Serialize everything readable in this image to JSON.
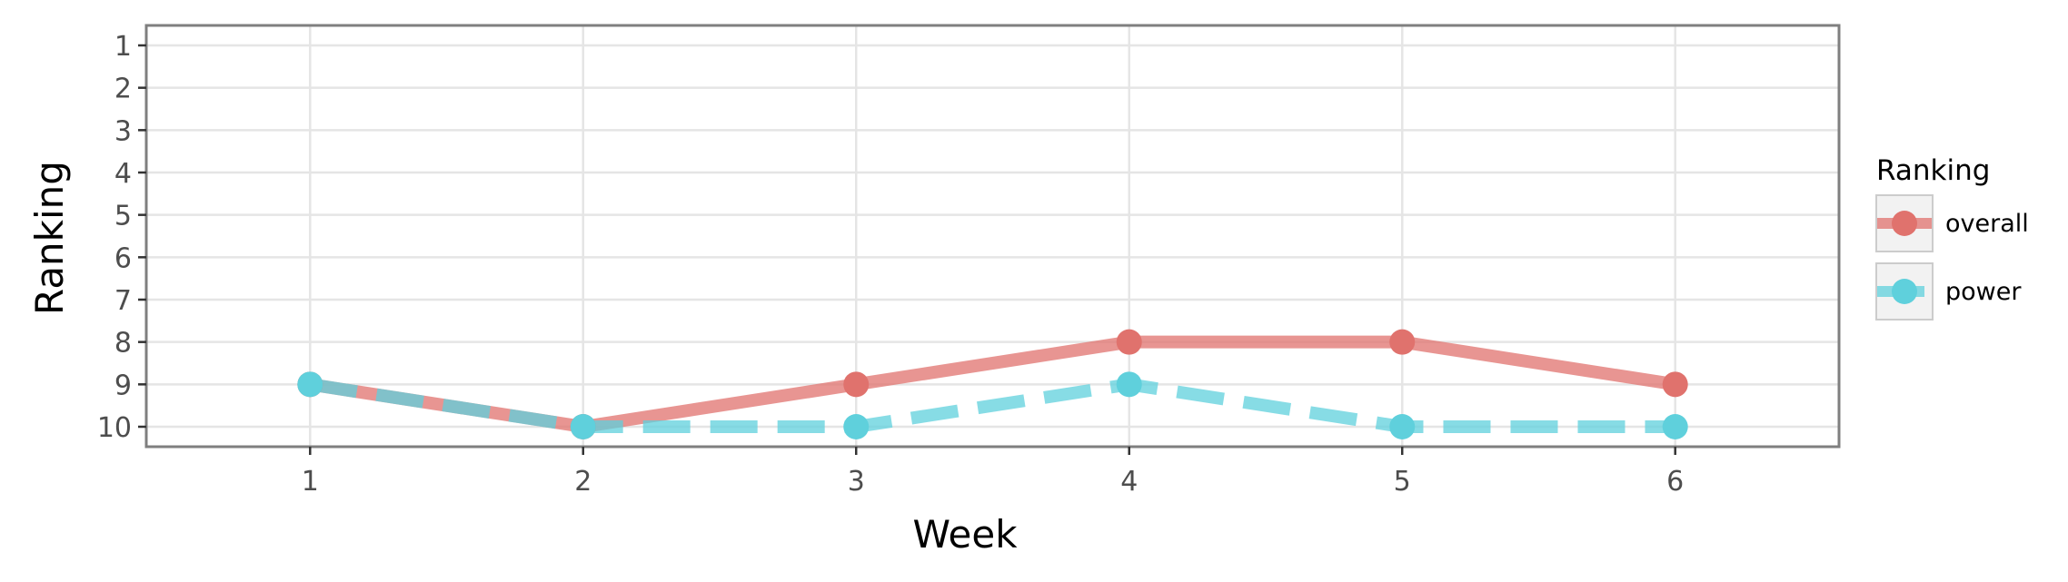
{
  "chart_data": {
    "type": "line",
    "xlabel": "Week",
    "ylabel": "Ranking",
    "x": [
      1,
      2,
      3,
      4,
      5,
      6
    ],
    "xticks": [
      "1",
      "2",
      "3",
      "4",
      "5",
      "6"
    ],
    "yticks": [
      "1",
      "2",
      "3",
      "4",
      "5",
      "6",
      "7",
      "8",
      "9",
      "10"
    ],
    "xlim": [
      0.4,
      6.6
    ],
    "ylim": [
      1,
      10
    ],
    "y_reversed": true,
    "grid": true,
    "legend": {
      "title": "Ranking",
      "position": "right"
    },
    "series": [
      {
        "name": "overall",
        "values": [
          9,
          10,
          9,
          8,
          8,
          9
        ],
        "color": "#e0726d",
        "dashed": false
      },
      {
        "name": "power",
        "values": [
          9,
          10,
          10,
          9,
          10,
          10
        ],
        "color": "#5fd0dc",
        "dashed": true
      }
    ]
  }
}
